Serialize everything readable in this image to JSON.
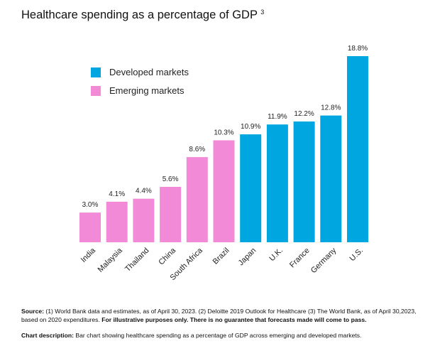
{
  "header": {
    "title": "Healthcare spending as a percentage of GDP",
    "title_sup": "3"
  },
  "chart_data": {
    "type": "bar",
    "title": "Healthcare spending as a percentage of GDP",
    "categories": [
      "India",
      "Malaysia",
      "Thailand",
      "China",
      "South Africa",
      "Brazil",
      "Japan",
      "U.K.",
      "France",
      "Germany",
      "U.S."
    ],
    "values": [
      3.0,
      4.1,
      4.4,
      5.6,
      8.6,
      10.3,
      10.9,
      11.9,
      12.2,
      12.8,
      18.8
    ],
    "value_labels": [
      "3.0%",
      "4.1%",
      "4.4%",
      "5.6%",
      "8.6%",
      "10.3%",
      "10.9%",
      "11.9%",
      "12.2%",
      "12.8%",
      "18.8%"
    ],
    "groups": [
      "emerging",
      "emerging",
      "emerging",
      "emerging",
      "emerging",
      "emerging",
      "developed",
      "developed",
      "developed",
      "developed",
      "developed"
    ],
    "legend": [
      {
        "key": "developed",
        "label": "Developed markets",
        "color": "#00a6e0"
      },
      {
        "key": "emerging",
        "label": "Emerging markets",
        "color": "#f28ad8"
      }
    ],
    "legend_position": "top-left",
    "ylim": [
      0,
      20
    ],
    "grid": false,
    "xlabel": "",
    "ylabel": ""
  },
  "footnotes": {
    "source_label": "Source:",
    "source_text": " (1) World Bank data and estimates, as of April 30, 2023. (2) Deloitte 2019 Outlook for Healthcare (3) The World Bank, as of April 30,2023, based on 2020 expenditures. ",
    "disclaimer": "For illustrative purposes only. There is no guarantee that forecasts made will come to pass.",
    "description_label": "Chart description:",
    "description_text": " Bar chart showing healthcare spending as a percentage of GDP across emerging and developed markets."
  }
}
